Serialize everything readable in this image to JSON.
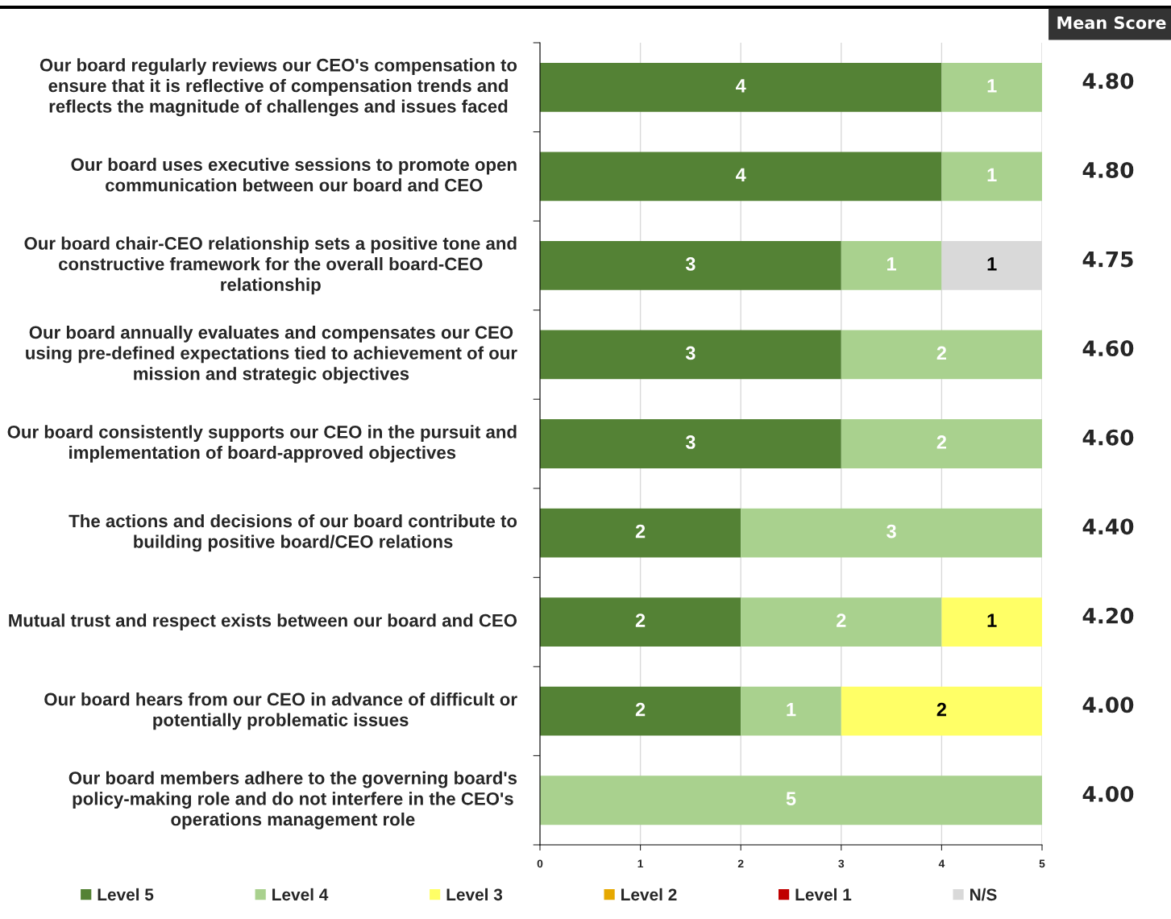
{
  "chart_data": {
    "type": "bar",
    "orientation": "horizontal",
    "stacked": true,
    "categories": [
      "Our board regularly reviews our CEO's compensation to ensure that it is reflective of compensation trends and reflects the magnitude of challenges and issues faced",
      "Our board uses executive sessions to promote open communication between our board and CEO",
      "Our board chair-CEO relationship sets a positive tone and constructive framework for the overall board-CEO relationship",
      "Our board annually evaluates and compensates our CEO using pre-defined expectations tied to achievement of our mission and strategic objectives",
      "Our board consistently supports our CEO in the pursuit and implementation of board-approved objectives",
      "The actions and decisions of our board contribute to building positive board/CEO relations",
      "Mutual trust and respect exists between our board and CEO",
      "Our board hears from our CEO in advance of difficult or potentially problematic issues",
      "Our board members adhere to the governing board's policy-making role and do not interfere in the CEO's operations management role"
    ],
    "series": [
      {
        "name": "Level 5",
        "color": "#548235",
        "values": [
          4,
          4,
          3,
          3,
          3,
          2,
          2,
          2,
          null
        ]
      },
      {
        "name": "Level 4",
        "color": "#a9d18e",
        "values": [
          1,
          1,
          1,
          2,
          2,
          3,
          2,
          1,
          5
        ]
      },
      {
        "name": "Level 3",
        "color": "#ffff66",
        "values": [
          null,
          null,
          null,
          null,
          null,
          null,
          1,
          2,
          null
        ]
      },
      {
        "name": "Level 2",
        "color": "#e6a800",
        "values": [
          null,
          null,
          null,
          null,
          null,
          null,
          null,
          null,
          null
        ]
      },
      {
        "name": "Level 1",
        "color": "#c00000",
        "values": [
          null,
          null,
          null,
          null,
          null,
          null,
          null,
          null,
          null
        ]
      },
      {
        "name": "N/S",
        "color": "#d9d9d9",
        "values": [
          null,
          null,
          1,
          null,
          null,
          null,
          null,
          null,
          null
        ]
      }
    ],
    "xlim": [
      0,
      5
    ],
    "xticks": [
      0,
      1,
      2,
      3,
      4,
      5
    ],
    "grid": "x",
    "legend": "bottom",
    "data_labels": true,
    "annotations": [
      "Mean Score",
      "4.80",
      "4.80",
      "4.75",
      "4.60",
      "4.60",
      "4.40",
      "4.20",
      "4.00",
      "4.00"
    ]
  }
}
